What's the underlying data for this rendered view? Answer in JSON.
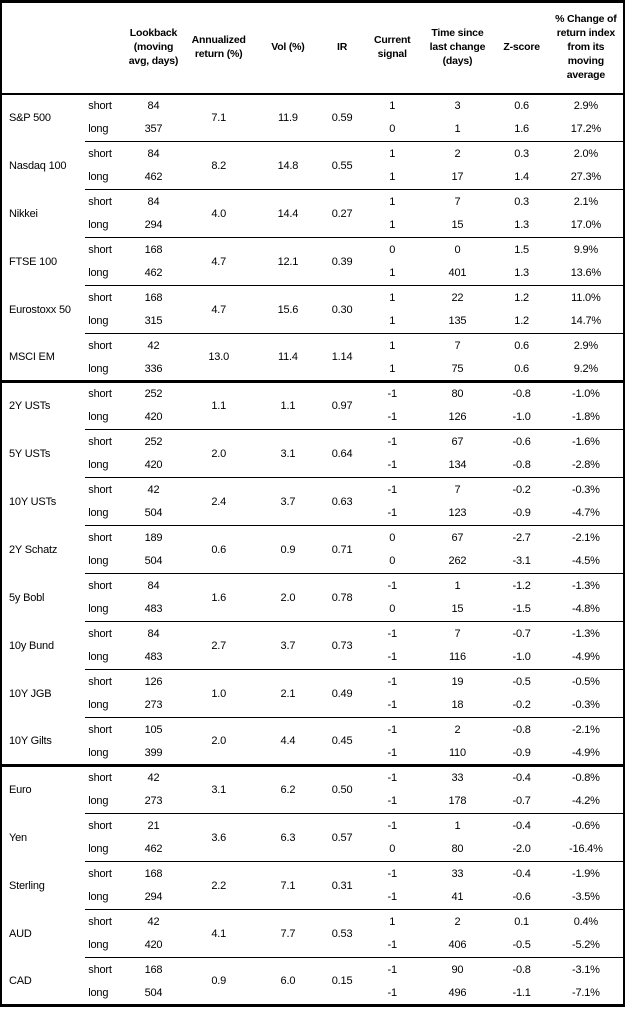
{
  "colors": {
    "border": "#000000",
    "background": "#ffffff",
    "text": "#000000"
  },
  "table": {
    "headers": {
      "lookback": "Lookback\n(moving\navg, days)",
      "annualized_return": "Annualized\nreturn (%)",
      "vol": "Vol (%)",
      "ir": "IR",
      "current_signal": "Current\nsignal",
      "time_since": "Time since\nlast change\n(days)",
      "zscore": "Z-score",
      "pct_change": "% Change of\nreturn index\nfrom its\nmoving\naverage"
    },
    "groups": [
      {
        "section": "equities",
        "name": "S&P 500",
        "annualized_return": "7.1",
        "vol": "11.9",
        "ir": "0.59",
        "rows": [
          {
            "pos": "short",
            "lookback": "84",
            "signal": "1",
            "time": "3",
            "zscore": "0.6",
            "change": "2.9%"
          },
          {
            "pos": "long",
            "lookback": "357",
            "signal": "0",
            "time": "1",
            "zscore": "1.6",
            "change": "17.2%"
          }
        ]
      },
      {
        "section": "equities",
        "name": "Nasdaq 100",
        "annualized_return": "8.2",
        "vol": "14.8",
        "ir": "0.55",
        "rows": [
          {
            "pos": "short",
            "lookback": "84",
            "signal": "1",
            "time": "2",
            "zscore": "0.3",
            "change": "2.0%"
          },
          {
            "pos": "long",
            "lookback": "462",
            "signal": "1",
            "time": "17",
            "zscore": "1.4",
            "change": "27.3%"
          }
        ]
      },
      {
        "section": "equities",
        "name": "Nikkei",
        "annualized_return": "4.0",
        "vol": "14.4",
        "ir": "0.27",
        "rows": [
          {
            "pos": "short",
            "lookback": "84",
            "signal": "1",
            "time": "7",
            "zscore": "0.3",
            "change": "2.1%"
          },
          {
            "pos": "long",
            "lookback": "294",
            "signal": "1",
            "time": "15",
            "zscore": "1.3",
            "change": "17.0%"
          }
        ]
      },
      {
        "section": "equities",
        "name": "FTSE 100",
        "annualized_return": "4.7",
        "vol": "12.1",
        "ir": "0.39",
        "rows": [
          {
            "pos": "short",
            "lookback": "168",
            "signal": "0",
            "time": "0",
            "zscore": "1.5",
            "change": "9.9%"
          },
          {
            "pos": "long",
            "lookback": "462",
            "signal": "1",
            "time": "401",
            "zscore": "1.3",
            "change": "13.6%"
          }
        ]
      },
      {
        "section": "equities",
        "name": "Eurostoxx 50",
        "annualized_return": "4.7",
        "vol": "15.6",
        "ir": "0.30",
        "rows": [
          {
            "pos": "short",
            "lookback": "168",
            "signal": "1",
            "time": "22",
            "zscore": "1.2",
            "change": "11.0%"
          },
          {
            "pos": "long",
            "lookback": "315",
            "signal": "1",
            "time": "135",
            "zscore": "1.2",
            "change": "14.7%"
          }
        ]
      },
      {
        "section": "equities",
        "name": "MSCI EM",
        "annualized_return": "13.0",
        "vol": "11.4",
        "ir": "1.14",
        "rows": [
          {
            "pos": "short",
            "lookback": "42",
            "signal": "1",
            "time": "7",
            "zscore": "0.6",
            "change": "2.9%"
          },
          {
            "pos": "long",
            "lookback": "336",
            "signal": "1",
            "time": "75",
            "zscore": "0.6",
            "change": "9.2%"
          }
        ]
      },
      {
        "section": "rates",
        "name": "2Y USTs",
        "annualized_return": "1.1",
        "vol": "1.1",
        "ir": "0.97",
        "rows": [
          {
            "pos": "short",
            "lookback": "252",
            "signal": "-1",
            "time": "80",
            "zscore": "-0.8",
            "change": "-1.0%"
          },
          {
            "pos": "long",
            "lookback": "420",
            "signal": "-1",
            "time": "126",
            "zscore": "-1.0",
            "change": "-1.8%"
          }
        ]
      },
      {
        "section": "rates",
        "name": "5Y USTs",
        "annualized_return": "2.0",
        "vol": "3.1",
        "ir": "0.64",
        "rows": [
          {
            "pos": "short",
            "lookback": "252",
            "signal": "-1",
            "time": "67",
            "zscore": "-0.6",
            "change": "-1.6%"
          },
          {
            "pos": "long",
            "lookback": "420",
            "signal": "-1",
            "time": "134",
            "zscore": "-0.8",
            "change": "-2.8%"
          }
        ]
      },
      {
        "section": "rates",
        "name": "10Y USTs",
        "annualized_return": "2.4",
        "vol": "3.7",
        "ir": "0.63",
        "rows": [
          {
            "pos": "short",
            "lookback": "42",
            "signal": "-1",
            "time": "7",
            "zscore": "-0.2",
            "change": "-0.3%"
          },
          {
            "pos": "long",
            "lookback": "504",
            "signal": "-1",
            "time": "123",
            "zscore": "-0.9",
            "change": "-4.7%"
          }
        ]
      },
      {
        "section": "rates",
        "name": "2Y Schatz",
        "annualized_return": "0.6",
        "vol": "0.9",
        "ir": "0.71",
        "rows": [
          {
            "pos": "short",
            "lookback": "189",
            "signal": "0",
            "time": "67",
            "zscore": "-2.7",
            "change": "-2.1%"
          },
          {
            "pos": "long",
            "lookback": "504",
            "signal": "0",
            "time": "262",
            "zscore": "-3.1",
            "change": "-4.5%"
          }
        ]
      },
      {
        "section": "rates",
        "name": "5y Bobl",
        "annualized_return": "1.6",
        "vol": "2.0",
        "ir": "0.78",
        "rows": [
          {
            "pos": "short",
            "lookback": "84",
            "signal": "-1",
            "time": "1",
            "zscore": "-1.2",
            "change": "-1.3%"
          },
          {
            "pos": "long",
            "lookback": "483",
            "signal": "0",
            "time": "15",
            "zscore": "-1.5",
            "change": "-4.8%"
          }
        ]
      },
      {
        "section": "rates",
        "name": "10y Bund",
        "annualized_return": "2.7",
        "vol": "3.7",
        "ir": "0.73",
        "rows": [
          {
            "pos": "short",
            "lookback": "84",
            "signal": "-1",
            "time": "7",
            "zscore": "-0.7",
            "change": "-1.3%"
          },
          {
            "pos": "long",
            "lookback": "483",
            "signal": "-1",
            "time": "116",
            "zscore": "-1.0",
            "change": "-4.9%"
          }
        ]
      },
      {
        "section": "rates",
        "name": "10Y JGB",
        "annualized_return": "1.0",
        "vol": "2.1",
        "ir": "0.49",
        "rows": [
          {
            "pos": "short",
            "lookback": "126",
            "signal": "-1",
            "time": "19",
            "zscore": "-0.5",
            "change": "-0.5%"
          },
          {
            "pos": "long",
            "lookback": "273",
            "signal": "-1",
            "time": "18",
            "zscore": "-0.2",
            "change": "-0.3%"
          }
        ]
      },
      {
        "section": "rates",
        "name": "10Y Gilts",
        "annualized_return": "2.0",
        "vol": "4.4",
        "ir": "0.45",
        "rows": [
          {
            "pos": "short",
            "lookback": "105",
            "signal": "-1",
            "time": "2",
            "zscore": "-0.8",
            "change": "-2.1%"
          },
          {
            "pos": "long",
            "lookback": "399",
            "signal": "-1",
            "time": "110",
            "zscore": "-0.9",
            "change": "-4.9%"
          }
        ]
      },
      {
        "section": "fx",
        "name": "Euro",
        "annualized_return": "3.1",
        "vol": "6.2",
        "ir": "0.50",
        "rows": [
          {
            "pos": "short",
            "lookback": "42",
            "signal": "-1",
            "time": "33",
            "zscore": "-0.4",
            "change": "-0.8%"
          },
          {
            "pos": "long",
            "lookback": "273",
            "signal": "-1",
            "time": "178",
            "zscore": "-0.7",
            "change": "-4.2%"
          }
        ]
      },
      {
        "section": "fx",
        "name": "Yen",
        "annualized_return": "3.6",
        "vol": "6.3",
        "ir": "0.57",
        "rows": [
          {
            "pos": "short",
            "lookback": "21",
            "signal": "-1",
            "time": "1",
            "zscore": "-0.4",
            "change": "-0.6%"
          },
          {
            "pos": "long",
            "lookback": "462",
            "signal": "0",
            "time": "80",
            "zscore": "-2.0",
            "change": "-16.4%"
          }
        ]
      },
      {
        "section": "fx",
        "name": "Sterling",
        "annualized_return": "2.2",
        "vol": "7.1",
        "ir": "0.31",
        "rows": [
          {
            "pos": "short",
            "lookback": "168",
            "signal": "-1",
            "time": "33",
            "zscore": "-0.4",
            "change": "-1.9%"
          },
          {
            "pos": "long",
            "lookback": "294",
            "signal": "-1",
            "time": "41",
            "zscore": "-0.6",
            "change": "-3.5%"
          }
        ]
      },
      {
        "section": "fx",
        "name": "AUD",
        "annualized_return": "4.1",
        "vol": "7.7",
        "ir": "0.53",
        "rows": [
          {
            "pos": "short",
            "lookback": "42",
            "signal": "1",
            "time": "2",
            "zscore": "0.1",
            "change": "0.4%"
          },
          {
            "pos": "long",
            "lookback": "420",
            "signal": "-1",
            "time": "406",
            "zscore": "-0.5",
            "change": "-5.2%"
          }
        ]
      },
      {
        "section": "fx",
        "name": "CAD",
        "annualized_return": "0.9",
        "vol": "6.0",
        "ir": "0.15",
        "rows": [
          {
            "pos": "short",
            "lookback": "168",
            "signal": "-1",
            "time": "90",
            "zscore": "-0.8",
            "change": "-3.1%"
          },
          {
            "pos": "long",
            "lookback": "504",
            "signal": "-1",
            "time": "496",
            "zscore": "-1.1",
            "change": "-7.1%"
          }
        ]
      }
    ]
  }
}
